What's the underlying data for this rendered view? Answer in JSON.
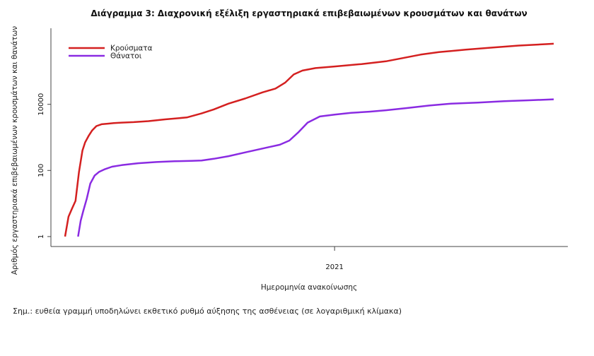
{
  "chart_data": {
    "type": "line",
    "title": "Διάγραμμα 3: Διαχρονική εξέλιξη εργαστηριακά επιβεβαιωμένων κρουσμάτων και θανάτων",
    "xlabel": "Ημερομηνία ανακοίνωσης",
    "ylabel": "Αριθμός εργαστηριακά επιβεβαιωμένων κρουσμάτων και θανάτων",
    "y_scale": "log",
    "ylim": [
      0.5,
      2000000
    ],
    "y_ticks": [
      1,
      100,
      10000
    ],
    "y_tick_labels": [
      "1",
      "100",
      "10000"
    ],
    "x_range": [
      "2020-02-26",
      "2021-09-10"
    ],
    "x_ticks": [
      "2021-01-01"
    ],
    "x_tick_labels": [
      "2021"
    ],
    "grid": false,
    "legend_position": "top-left",
    "series": [
      {
        "name": "Κρούσματα",
        "color": "#d42020",
        "x": [
          "2020-02-26",
          "2020-03-01",
          "2020-03-05",
          "2020-03-09",
          "2020-03-13",
          "2020-03-17",
          "2020-03-20",
          "2020-03-24",
          "2020-03-28",
          "2020-04-02",
          "2020-04-08",
          "2020-04-15",
          "2020-04-22",
          "2020-05-01",
          "2020-05-15",
          "2020-06-01",
          "2020-06-20",
          "2020-07-15",
          "2020-08-01",
          "2020-08-15",
          "2020-09-01",
          "2020-09-20",
          "2020-10-10",
          "2020-10-25",
          "2020-11-05",
          "2020-11-15",
          "2020-11-25",
          "2020-12-10",
          "2021-01-01",
          "2021-02-01",
          "2021-03-01",
          "2021-03-20",
          "2021-04-10",
          "2021-05-01",
          "2021-06-01",
          "2021-07-01",
          "2021-08-01",
          "2021-09-01",
          "2021-09-10"
        ],
        "y": [
          1,
          4,
          7,
          12,
          90,
          400,
          700,
          1100,
          1600,
          2200,
          2500,
          2600,
          2700,
          2800,
          2900,
          3100,
          3500,
          4000,
          5300,
          7000,
          10500,
          15000,
          23000,
          30000,
          45000,
          80000,
          105000,
          125000,
          140000,
          165000,
          200000,
          250000,
          320000,
          380000,
          450000,
          520000,
          600000,
          660000,
          680000
        ]
      },
      {
        "name": "Θάνατοι",
        "color": "#8a2be2",
        "x": [
          "2020-03-12",
          "2020-03-15",
          "2020-03-18",
          "2020-03-22",
          "2020-03-26",
          "2020-03-31",
          "2020-04-05",
          "2020-04-12",
          "2020-04-20",
          "2020-05-01",
          "2020-05-20",
          "2020-06-10",
          "2020-07-01",
          "2020-07-20",
          "2020-08-01",
          "2020-08-15",
          "2020-09-01",
          "2020-09-20",
          "2020-10-10",
          "2020-10-30",
          "2020-11-10",
          "2020-11-20",
          "2020-12-01",
          "2020-12-15",
          "2021-01-01",
          "2021-01-20",
          "2021-02-10",
          "2021-03-01",
          "2021-03-25",
          "2021-04-20",
          "2021-05-15",
          "2021-06-15",
          "2021-07-15",
          "2021-08-15",
          "2021-09-10"
        ],
        "y": [
          1,
          3,
          6,
          14,
          40,
          70,
          90,
          110,
          130,
          145,
          165,
          180,
          190,
          195,
          200,
          225,
          270,
          350,
          460,
          600,
          800,
          1400,
          2800,
          4300,
          4900,
          5500,
          6000,
          6600,
          7700,
          9200,
          10500,
          11300,
          12400,
          13300,
          14200
        ]
      }
    ]
  },
  "note": "Σημ.: ευθεία γραμμή υποδηλώνει εκθετικό ρυθμό αύξησης της ασθένειας (σε λογαριθμική κλίμακα)"
}
